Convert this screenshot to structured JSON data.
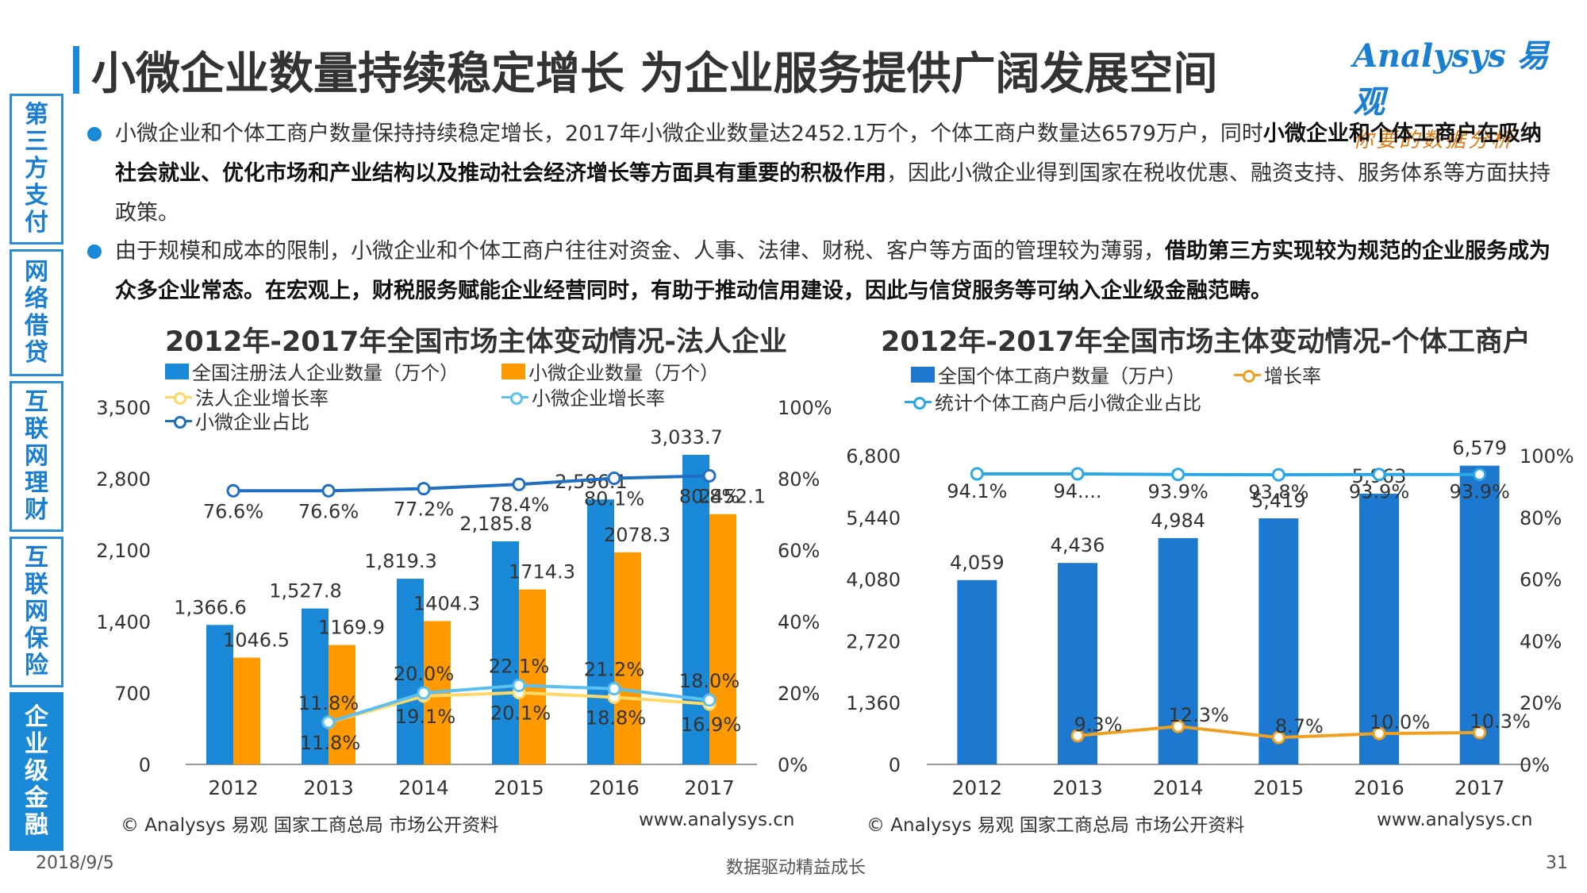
{
  "sidebar": {
    "tabs": [
      {
        "label": "第三方支付",
        "active": false
      },
      {
        "label": "网络借贷",
        "active": false
      },
      {
        "label": "互联网理财",
        "active": false
      },
      {
        "label": "互联网保险",
        "active": false
      },
      {
        "label": "企业级金融",
        "active": true
      }
    ]
  },
  "header": {
    "title": "小微企业数量持续稳定增长 为企业服务提供广阔发展空间",
    "logo_main": "Analysys 易观",
    "logo_sub": "你要的数据分析"
  },
  "body": {
    "p1_a": "小微企业和个体工商户数量保持持续稳定增长，2017年小微企业数量达2452.1万个，个体工商户数量达6579万户，同时",
    "p1_b": "小微企业和个体工商户在吸纳社会就业、优化市场和产业结构以及推动社会经济增长等方面具有重要的积极作用",
    "p1_c": "，因此小微企业得到国家在税收优惠、融资支持、服务体系等方面扶持政策。",
    "p2_a": "由于规模和成本的限制，小微企业和个体工商户往往对资金、人事、法律、财税、客户等方面的管理较为薄弱，",
    "p2_b": "借助第三方实现较为规范的企业服务成为众多企业常态。在宏观上，财税服务赋能企业经营同时，有助于推动信用建设，因此与信贷服务等可纳入企业级金融范畴。"
  },
  "colors": {
    "blue_bar": "#1a8ad8",
    "orange_bar": "#ff9900",
    "share_line": "#1f6fc2",
    "legal_growth": "#ffd966",
    "smb_growth": "#5bc0f0",
    "ind_bar": "#1d78d0",
    "ind_growth": "#f0a020",
    "ind_share": "#29a8e8"
  },
  "chart_data": [
    {
      "type": "bar",
      "title": "2012年-2017年全国市场主体变动情况-法人企业",
      "categories": [
        "2012",
        "2013",
        "2014",
        "2015",
        "2016",
        "2017"
      ],
      "y_ticks": [
        "0",
        "700",
        "1,400",
        "2,100",
        "2,800",
        "3,500"
      ],
      "y2_ticks": [
        "0%",
        "20%",
        "40%",
        "60%",
        "80%",
        "100%"
      ],
      "ylim": [
        0,
        3500
      ],
      "y2lim": [
        0,
        100
      ],
      "series": [
        {
          "name": "全国注册法人企业数量（万个）",
          "kind": "bar",
          "values": [
            1366.6,
            1527.8,
            1819.3,
            2185.8,
            2596.1,
            3033.7
          ],
          "labels": [
            "1,366.6",
            "1,527.8",
            "1,819.3",
            "2,185.8",
            "2,596.1",
            "3,033.7"
          ]
        },
        {
          "name": "小微企业数量（万个）",
          "kind": "bar",
          "values": [
            1046.5,
            1169.9,
            1404.3,
            1714.3,
            2078.3,
            2452.1
          ],
          "labels": [
            "1046.5",
            "1169.9",
            "1404.3",
            "1714.3",
            "2078.3",
            "2452.1"
          ]
        },
        {
          "name": "法人企业增长率",
          "kind": "line",
          "axis": "right",
          "values": [
            null,
            11.8,
            19.1,
            20.1,
            18.8,
            16.9
          ],
          "labels": [
            "",
            "11.8%",
            "19.1%",
            "20.1%",
            "18.8%",
            "16.9%"
          ]
        },
        {
          "name": "小微企业增长率",
          "kind": "line",
          "axis": "right",
          "values": [
            null,
            11.8,
            20.0,
            22.1,
            21.2,
            18.0
          ],
          "labels": [
            "",
            "11.8%",
            "20.0%",
            "22.1%",
            "21.2%",
            "18.0%"
          ]
        },
        {
          "name": "小微企业占比",
          "kind": "line",
          "axis": "right",
          "values": [
            76.6,
            76.6,
            77.2,
            78.4,
            80.1,
            80.8
          ],
          "labels": [
            "76.6%",
            "76.6%",
            "77.2%",
            "78.4%",
            "80.1%",
            "80.8%"
          ]
        }
      ],
      "source": "© Analysys 易观 国家工商总局 市场公开资料",
      "url": "www.analysys.cn"
    },
    {
      "type": "bar",
      "title": "2012年-2017年全国市场主体变动情况-个体工商户",
      "categories": [
        "2012",
        "2013",
        "2014",
        "2015",
        "2016",
        "2017"
      ],
      "y_ticks": [
        "0",
        "1,360",
        "2,720",
        "4,080",
        "5,440",
        "6,800"
      ],
      "y2_ticks": [
        "0%",
        "20%",
        "40%",
        "60%",
        "80%",
        "100%"
      ],
      "ylim": [
        0,
        6800
      ],
      "y2lim": [
        0,
        100
      ],
      "series": [
        {
          "name": "全国个体工商户数量（万户）",
          "kind": "bar",
          "values": [
            4059,
            4436,
            4984,
            5419,
            5963,
            6579
          ],
          "labels": [
            "4,059",
            "4,436",
            "4,984",
            "5,419",
            "5,963",
            "6,579"
          ]
        },
        {
          "name": "增长率",
          "kind": "line",
          "axis": "right",
          "values": [
            null,
            9.3,
            12.3,
            8.7,
            10.0,
            10.3
          ],
          "labels": [
            "",
            "9.3%",
            "12.3%",
            "8.7%",
            "10.0%",
            "10.3%"
          ]
        },
        {
          "name": "统计个体工商户后小微企业占比",
          "kind": "line",
          "axis": "right",
          "values": [
            94.1,
            94.1,
            93.9,
            93.8,
            93.9,
            93.9
          ],
          "labels": [
            "94.1%",
            "94....",
            "93.9%",
            "93.8%",
            "93.9%",
            "93.9%"
          ]
        }
      ],
      "source": "© Analysys 易观 国家工商总局 市场公开资料",
      "url": "www.analysys.cn"
    }
  ],
  "footer": {
    "date": "2018/9/5",
    "slogan": "数据驱动精益成长",
    "page": "31"
  }
}
